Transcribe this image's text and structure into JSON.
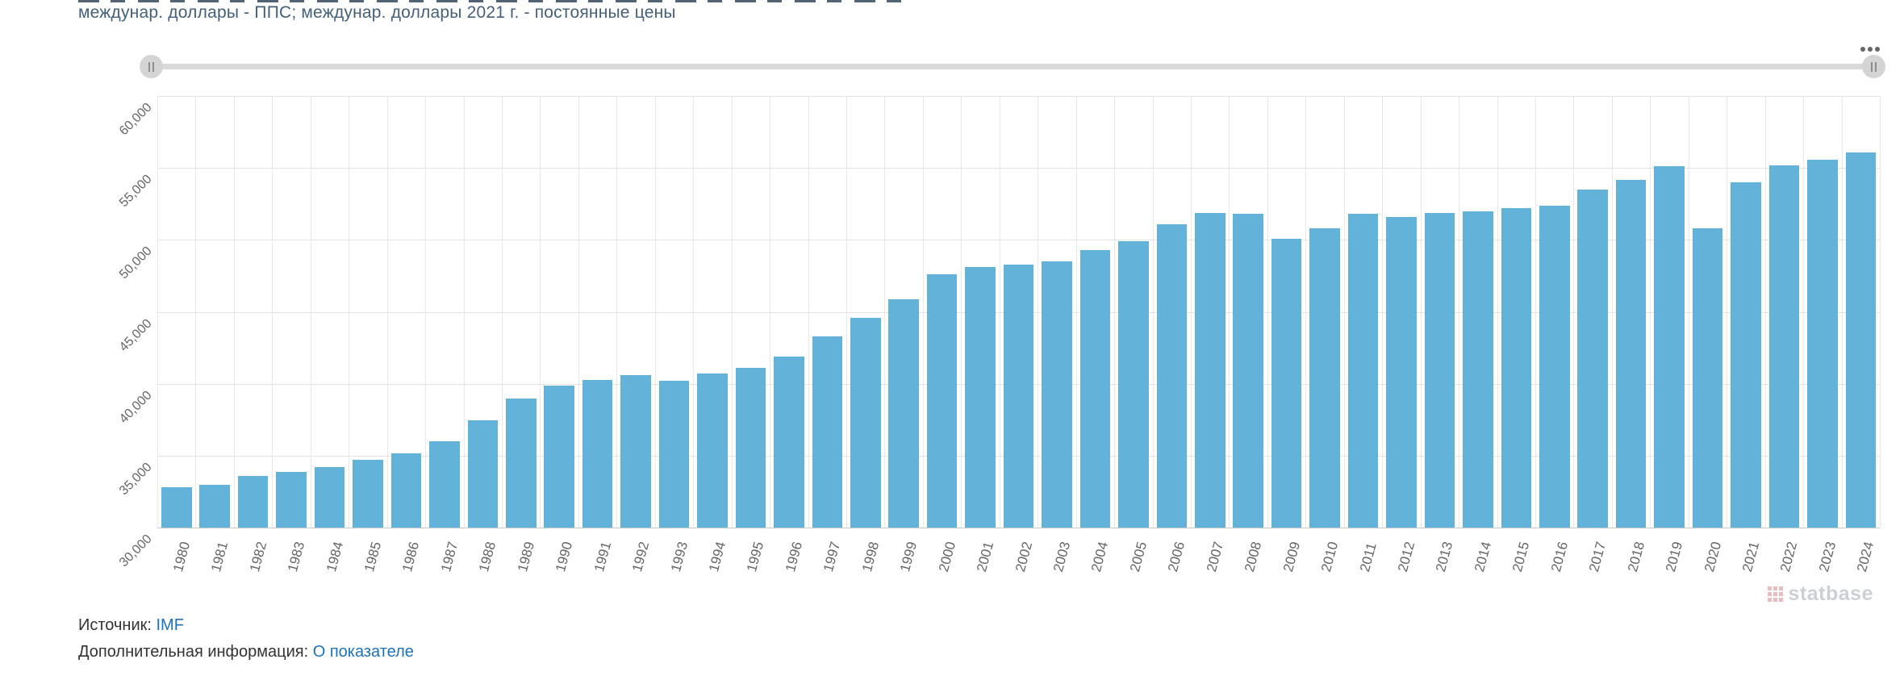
{
  "title": "междунар. доллары - ППС; междунар. доллары 2021 г. - постоянные цены",
  "toolbar": {
    "menu_icon": "more-options-icon",
    "slider_handle_icon": "drag-handle-icon"
  },
  "chart_data": {
    "type": "bar",
    "title": "междунар. доллары - ППС; междунар. доллары 2021 г. - постоянные цены",
    "categories": [
      "1980",
      "1981",
      "1982",
      "1983",
      "1984",
      "1985",
      "1986",
      "1987",
      "1988",
      "1989",
      "1990",
      "1991",
      "1992",
      "1993",
      "1994",
      "1995",
      "1996",
      "1997",
      "1998",
      "1999",
      "2000",
      "2001",
      "2002",
      "2003",
      "2004",
      "2005",
      "2006",
      "2007",
      "2008",
      "2009",
      "2010",
      "2011",
      "2012",
      "2013",
      "2014",
      "2015",
      "2016",
      "2017",
      "2018",
      "2019",
      "2020",
      "2021",
      "2022",
      "2023",
      "2024"
    ],
    "values": [
      32800,
      33000,
      33600,
      33900,
      34200,
      34700,
      35200,
      36000,
      37500,
      39000,
      39900,
      40300,
      40600,
      40200,
      40700,
      41100,
      41900,
      43300,
      44600,
      45900,
      47600,
      48100,
      48300,
      48500,
      49300,
      49900,
      51100,
      51900,
      51800,
      50100,
      50800,
      51800,
      51600,
      51900,
      52000,
      52200,
      52400,
      53500,
      54200,
      55100,
      50800,
      54000,
      55200,
      55600,
      56100
    ],
    "ylim": [
      30000,
      60000
    ],
    "ytick_step": 5000,
    "ytick_labels": [
      "30,000",
      "35,000",
      "40,000",
      "45,000",
      "50,000",
      "55,000",
      "60,000"
    ],
    "grid": true,
    "legend": "none",
    "bar_color": "#63b2da",
    "xlabel": "",
    "ylabel": ""
  },
  "footer": {
    "source_label": "Источник:",
    "source_link": "IMF",
    "info_label": "Дополнительная информация:",
    "info_link": "О показателе",
    "watermark": "statbase"
  },
  "colors": {
    "accent_blue": "#63b2da",
    "link": "#1d72b8",
    "title_text": "#44607a",
    "axis_text": "#666666"
  }
}
